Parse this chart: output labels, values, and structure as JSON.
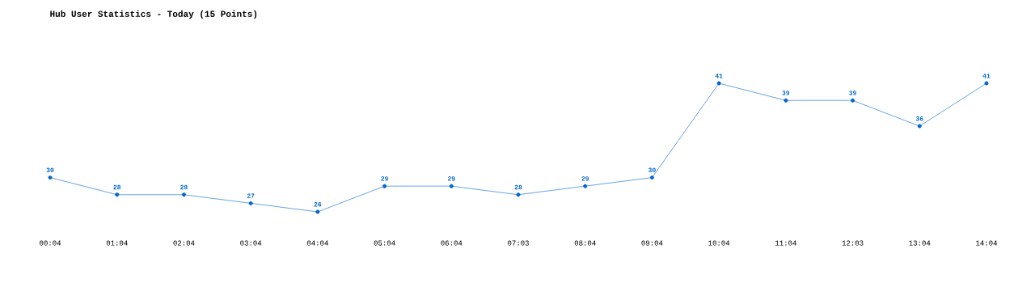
{
  "chart_data": {
    "type": "line",
    "title": "Hub User Statistics - Today (15 Points)",
    "categories": [
      "00:04",
      "01:04",
      "02:04",
      "03:04",
      "04:04",
      "05:04",
      "06:04",
      "07:03",
      "08:04",
      "09:04",
      "10:04",
      "11:04",
      "12:03",
      "13:04",
      "14:04"
    ],
    "values": [
      30,
      28,
      28,
      27,
      26,
      29,
      29,
      28,
      29,
      30,
      41,
      39,
      39,
      36,
      41
    ],
    "color": "#0066cc",
    "marker": "circle",
    "line_style": "solid",
    "data_labels": true
  }
}
